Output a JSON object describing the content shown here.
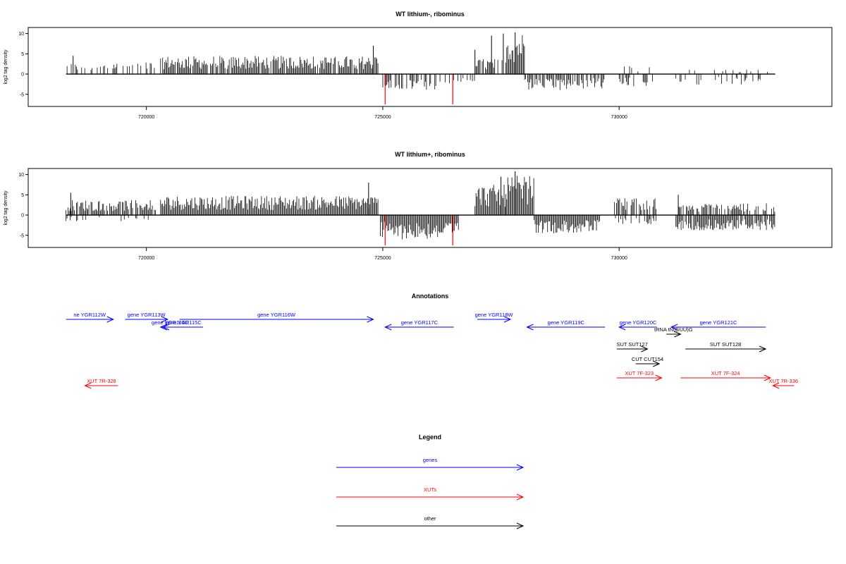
{
  "chart_data": [
    {
      "type": "bar",
      "title": "WT lithium-, ribominus",
      "ylabel": "log2 tag density",
      "xlim": [
        717500,
        734500
      ],
      "ylim": [
        -8,
        11.5
      ],
      "x_ticks": [
        720000,
        725000,
        730000
      ],
      "y_ticks": [
        -5,
        0,
        5,
        10
      ],
      "genomic_range": [
        718300,
        733300
      ],
      "regions": [
        {
          "from": 718300,
          "to": 719200,
          "strand": "+",
          "level": 1.8,
          "density": 0.35
        },
        {
          "from": 719200,
          "to": 720200,
          "strand": "+",
          "level": 2.0,
          "density": 0.35
        },
        {
          "from": 720300,
          "to": 724900,
          "strand": "+",
          "level": 3.0,
          "density": 0.9
        },
        {
          "from": 725000,
          "to": 726500,
          "strand": "-",
          "level": 2.6,
          "density": 0.6
        },
        {
          "from": 726500,
          "to": 727000,
          "strand": "-",
          "level": 1.5,
          "density": 0.3
        },
        {
          "from": 726950,
          "to": 727600,
          "strand": "+",
          "level": 2.5,
          "density": 0.6
        },
        {
          "from": 727600,
          "to": 728000,
          "strand": "+",
          "level": 7.0,
          "density": 1.0
        },
        {
          "from": 728000,
          "to": 728800,
          "strand": "-",
          "level": 2.8,
          "density": 0.8
        },
        {
          "from": 728800,
          "to": 729700,
          "strand": "-",
          "level": 2.5,
          "density": 0.7
        },
        {
          "from": 730000,
          "to": 730800,
          "strand": "-",
          "level": 2.0,
          "density": 0.35
        },
        {
          "from": 730000,
          "to": 730800,
          "strand": "+",
          "level": 1.5,
          "density": 0.15
        },
        {
          "from": 731200,
          "to": 733200,
          "strand": "-",
          "level": 1.8,
          "density": 0.25
        },
        {
          "from": 731200,
          "to": 733200,
          "strand": "+",
          "level": 1.0,
          "density": 0.12
        }
      ],
      "peaks": [
        {
          "x": 724800,
          "y": 7.0
        },
        {
          "x": 727550,
          "y": 10.0
        },
        {
          "x": 727800,
          "y": 10.3
        },
        {
          "x": 727300,
          "y": 9.5
        },
        {
          "x": 726950,
          "y": 6.0
        },
        {
          "x": 718450,
          "y": 4.5
        }
      ],
      "red_marks": [
        {
          "x": 725050,
          "y": -7.5
        },
        {
          "x": 726480,
          "y": -7.5
        }
      ]
    },
    {
      "type": "bar",
      "title": "WT lithium+, ribominus",
      "ylabel": "log2 tag density",
      "xlim": [
        717500,
        734500
      ],
      "ylim": [
        -8,
        11.5
      ],
      "x_ticks": [
        720000,
        725000,
        730000
      ],
      "y_ticks": [
        -5,
        0,
        5,
        10
      ],
      "genomic_range": [
        718300,
        733300
      ],
      "regions": [
        {
          "from": 718300,
          "to": 720200,
          "strand": "+",
          "level": 2.5,
          "density": 0.9
        },
        {
          "from": 718300,
          "to": 720200,
          "strand": "-",
          "level": 1.0,
          "density": 0.2
        },
        {
          "from": 720300,
          "to": 724900,
          "strand": "+",
          "level": 3.2,
          "density": 1.0
        },
        {
          "from": 724950,
          "to": 726600,
          "strand": "-",
          "level": 4.0,
          "density": 1.0
        },
        {
          "from": 726950,
          "to": 727600,
          "strand": "+",
          "level": 5.0,
          "density": 1.0
        },
        {
          "from": 727600,
          "to": 728200,
          "strand": "+",
          "level": 6.5,
          "density": 1.0
        },
        {
          "from": 728200,
          "to": 729600,
          "strand": "-",
          "level": 3.0,
          "density": 1.0
        },
        {
          "from": 729900,
          "to": 730800,
          "strand": "+",
          "level": 2.8,
          "density": 0.7
        },
        {
          "from": 729900,
          "to": 730800,
          "strand": "-",
          "level": 1.5,
          "density": 0.4
        },
        {
          "from": 731200,
          "to": 733300,
          "strand": "-",
          "level": 2.5,
          "density": 0.9
        },
        {
          "from": 731200,
          "to": 733300,
          "strand": "+",
          "level": 2.0,
          "density": 0.7
        }
      ],
      "peaks": [
        {
          "x": 724700,
          "y": 8.0
        },
        {
          "x": 727800,
          "y": 10.8
        },
        {
          "x": 727500,
          "y": 9.5
        },
        {
          "x": 718400,
          "y": 5.5
        },
        {
          "x": 731250,
          "y": 5.0
        }
      ],
      "red_marks": [
        {
          "x": 725050,
          "y": -7.5
        },
        {
          "x": 726480,
          "y": -7.5
        }
      ]
    }
  ],
  "annotations": {
    "title": "Annotations",
    "features": [
      {
        "label": "ne YGR112W",
        "from": 718300,
        "to": 719300,
        "strand": "+",
        "row": 0,
        "color": "#0000ff"
      },
      {
        "label": "gene YGR113W",
        "from": 719550,
        "to": 720450,
        "strand": "+",
        "row": 0,
        "color": "#0000ff"
      },
      {
        "label": "gene YGR114C",
        "from": 720300,
        "to": 720700,
        "strand": "-",
        "row": 1,
        "color": "#0000ff"
      },
      {
        "label": "gene YGR115C",
        "from": 720350,
        "to": 721200,
        "strand": "-",
        "row": 1,
        "color": "#0000ff"
      },
      {
        "label": "gene YGR116W",
        "from": 720700,
        "to": 724800,
        "strand": "+",
        "row": 0,
        "color": "#0000ff"
      },
      {
        "label": "gene YGR117C",
        "from": 725050,
        "to": 726500,
        "strand": "-",
        "row": 1,
        "color": "#0000ff"
      },
      {
        "label": "gene YGR118W",
        "from": 727000,
        "to": 727700,
        "strand": "+",
        "row": 0,
        "color": "#0000ff"
      },
      {
        "label": "gene YGR119C",
        "from": 728050,
        "to": 729700,
        "strand": "-",
        "row": 1,
        "color": "#0000ff"
      },
      {
        "label": "gene YGR120C",
        "from": 730000,
        "to": 730800,
        "strand": "-",
        "row": 1,
        "color": "#0000ff"
      },
      {
        "label": "gene YGR121C",
        "from": 731100,
        "to": 733100,
        "strand": "-",
        "row": 1,
        "color": "#0000ff"
      },
      {
        "label": "tRNA tN(GUU)G",
        "from": 731000,
        "to": 731300,
        "strand": "+",
        "row": 2,
        "color": "#000000"
      },
      {
        "label": "SUT SUT127",
        "from": 729950,
        "to": 730600,
        "strand": "+",
        "row": 3,
        "color": "#000000"
      },
      {
        "label": "SUT SUT128",
        "from": 731400,
        "to": 733100,
        "strand": "+",
        "row": 3,
        "color": "#000000"
      },
      {
        "label": "CUT CUT154",
        "from": 730350,
        "to": 730850,
        "strand": "+",
        "row": 4,
        "color": "#000000"
      },
      {
        "label": "XUT 7F-323",
        "from": 729950,
        "to": 730900,
        "strand": "+",
        "row": 5,
        "color": "#ff0000"
      },
      {
        "label": "XUT 7F-324",
        "from": 731300,
        "to": 733200,
        "strand": "+",
        "row": 5,
        "color": "#ff0000"
      },
      {
        "label": "XUT 7R-336",
        "from": 733250,
        "to": 733700,
        "strand": "-",
        "row": 6,
        "color": "#ff0000"
      },
      {
        "label": "XUT 7R-328",
        "from": 718700,
        "to": 719400,
        "strand": "-",
        "row": 6,
        "color": "#ff0000"
      }
    ]
  },
  "legend": {
    "title": "Legend",
    "items": [
      {
        "label": "genes",
        "color": "#0000ff"
      },
      {
        "label": "XUTs",
        "color": "#ff0000"
      },
      {
        "label": "other",
        "color": "#000000"
      }
    ]
  },
  "colors": {
    "signal": "#000000",
    "highlight": "#ff0000",
    "gene": "#0000ff",
    "xut": "#ff0000",
    "other": "#000000"
  }
}
